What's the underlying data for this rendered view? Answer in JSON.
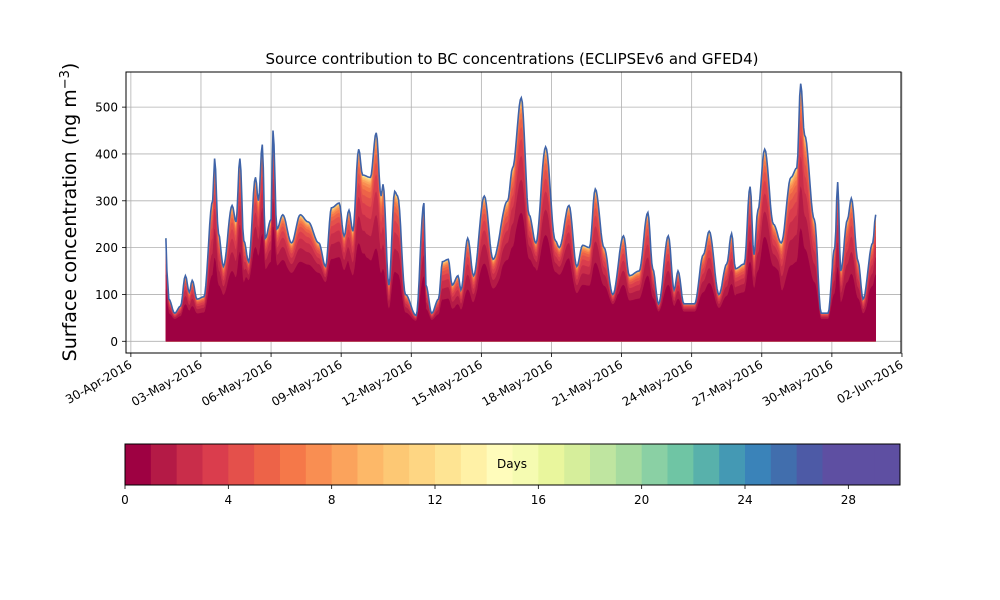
{
  "chart_data": {
    "type": "area",
    "subtype": "stacked-area-by-age",
    "title": "Source contribution to BC concentrations (ECLIPSEv6 and GFED4)",
    "ylabel_main": "Surface concentration (ng m",
    "ylabel_exp": "−3",
    "ylabel_close": ")",
    "ylim": [
      -25,
      575
    ],
    "xlim": [
      "2016-04-29T19:00",
      "2016-06-01T23:00"
    ],
    "grid": true,
    "yticks": [
      0,
      100,
      200,
      300,
      400,
      500
    ],
    "xticks": [
      {
        "date": "2016-04-30",
        "label": "30-Apr-2016"
      },
      {
        "date": "2016-05-03",
        "label": "03-May-2016"
      },
      {
        "date": "2016-05-06",
        "label": "06-May-2016"
      },
      {
        "date": "2016-05-09",
        "label": "09-May-2016"
      },
      {
        "date": "2016-05-12",
        "label": "12-May-2016"
      },
      {
        "date": "2016-05-15",
        "label": "15-May-2016"
      },
      {
        "date": "2016-05-18",
        "label": "18-May-2016"
      },
      {
        "date": "2016-05-21",
        "label": "21-May-2016"
      },
      {
        "date": "2016-05-24",
        "label": "24-May-2016"
      },
      {
        "date": "2016-05-27",
        "label": "27-May-2016"
      },
      {
        "date": "2016-05-30",
        "label": "30-May-2016"
      },
      {
        "date": "2016-06-02",
        "label": "02-Jun-2016"
      }
    ],
    "total": [
      [
        "2016-05-01T12:00",
        220
      ],
      [
        "2016-05-01T13:00",
        150
      ],
      [
        "2016-05-01T15:00",
        90
      ],
      [
        "2016-05-01T21:00",
        60
      ],
      [
        "2016-05-02T03:00",
        75
      ],
      [
        "2016-05-02T08:00",
        140
      ],
      [
        "2016-05-02T12:00",
        105
      ],
      [
        "2016-05-02T15:00",
        130
      ],
      [
        "2016-05-02T20:00",
        90
      ],
      [
        "2016-05-03T03:00",
        95
      ],
      [
        "2016-05-03T12:00",
        300
      ],
      [
        "2016-05-03T14:00",
        390
      ],
      [
        "2016-05-03T18:00",
        230
      ],
      [
        "2016-05-03T23:00",
        160
      ],
      [
        "2016-05-04T08:00",
        290
      ],
      [
        "2016-05-04T12:00",
        255
      ],
      [
        "2016-05-04T16:00",
        390
      ],
      [
        "2016-05-04T20:00",
        215
      ],
      [
        "2016-05-05T01:00",
        170
      ],
      [
        "2016-05-05T08:00",
        350
      ],
      [
        "2016-05-05T11:00",
        300
      ],
      [
        "2016-05-05T15:00",
        420
      ],
      [
        "2016-05-05T18:00",
        220
      ],
      [
        "2016-05-06T00:00",
        260
      ],
      [
        "2016-05-06T02:00",
        450
      ],
      [
        "2016-05-06T06:00",
        240
      ],
      [
        "2016-05-06T12:00",
        270
      ],
      [
        "2016-05-06T21:00",
        210
      ],
      [
        "2016-05-07T06:00",
        270
      ],
      [
        "2016-05-07T14:00",
        255
      ],
      [
        "2016-05-08T01:00",
        210
      ],
      [
        "2016-05-08T08:00",
        160
      ],
      [
        "2016-05-08T14:00",
        285
      ],
      [
        "2016-05-08T22:00",
        295
      ],
      [
        "2016-05-09T03:00",
        225
      ],
      [
        "2016-05-09T08:00",
        280
      ],
      [
        "2016-05-09T12:00",
        235
      ],
      [
        "2016-05-09T18:00",
        410
      ],
      [
        "2016-05-09T22:00",
        355
      ],
      [
        "2016-05-10T06:00",
        350
      ],
      [
        "2016-05-10T12:00",
        445
      ],
      [
        "2016-05-10T17:00",
        310
      ],
      [
        "2016-05-10T19:00",
        335
      ],
      [
        "2016-05-11T01:00",
        120
      ],
      [
        "2016-05-11T07:00",
        320
      ],
      [
        "2016-05-11T10:00",
        310
      ],
      [
        "2016-05-11T18:00",
        100
      ],
      [
        "2016-05-12T05:00",
        55
      ],
      [
        "2016-05-12T13:00",
        295
      ],
      [
        "2016-05-12T15:00",
        120
      ],
      [
        "2016-05-12T21:00",
        60
      ],
      [
        "2016-05-13T04:00",
        90
      ],
      [
        "2016-05-13T08:00",
        170
      ],
      [
        "2016-05-13T14:00",
        175
      ],
      [
        "2016-05-13T18:00",
        120
      ],
      [
        "2016-05-14T00:00",
        140
      ],
      [
        "2016-05-14T03:00",
        110
      ],
      [
        "2016-05-14T10:00",
        220
      ],
      [
        "2016-05-14T16:00",
        140
      ],
      [
        "2016-05-15T03:00",
        310
      ],
      [
        "2016-05-15T12:00",
        175
      ],
      [
        "2016-05-16T03:00",
        300
      ],
      [
        "2016-05-16T08:00",
        370
      ],
      [
        "2016-05-16T17:00",
        520
      ],
      [
        "2016-05-17T01:00",
        270
      ],
      [
        "2016-05-17T08:00",
        210
      ],
      [
        "2016-05-17T18:00",
        415
      ],
      [
        "2016-05-18T04:00",
        215
      ],
      [
        "2016-05-18T08:00",
        200
      ],
      [
        "2016-05-18T18:00",
        290
      ],
      [
        "2016-05-19T02:00",
        160
      ],
      [
        "2016-05-19T08:00",
        205
      ],
      [
        "2016-05-19T15:00",
        200
      ],
      [
        "2016-05-19T21:00",
        325
      ],
      [
        "2016-05-20T06:00",
        200
      ],
      [
        "2016-05-20T15:00",
        100
      ],
      [
        "2016-05-21T02:00",
        225
      ],
      [
        "2016-05-21T08:00",
        140
      ],
      [
        "2016-05-21T18:00",
        150
      ],
      [
        "2016-05-22T03:00",
        275
      ],
      [
        "2016-05-22T08:00",
        155
      ],
      [
        "2016-05-22T14:00",
        80
      ],
      [
        "2016-05-23T00:00",
        225
      ],
      [
        "2016-05-23T06:00",
        110
      ],
      [
        "2016-05-23T10:00",
        150
      ],
      [
        "2016-05-23T16:00",
        80
      ],
      [
        "2016-05-24T03:00",
        80
      ],
      [
        "2016-05-24T12:00",
        185
      ],
      [
        "2016-05-24T18:00",
        235
      ],
      [
        "2016-05-25T04:00",
        100
      ],
      [
        "2016-05-25T12:00",
        165
      ],
      [
        "2016-05-25T17:00",
        230
      ],
      [
        "2016-05-25T21:00",
        155
      ],
      [
        "2016-05-26T06:00",
        165
      ],
      [
        "2016-05-26T12:00",
        330
      ],
      [
        "2016-05-26T16:00",
        185
      ],
      [
        "2016-05-26T20:00",
        280
      ],
      [
        "2016-05-27T03:00",
        410
      ],
      [
        "2016-05-27T12:00",
        250
      ],
      [
        "2016-05-27T20:00",
        210
      ],
      [
        "2016-05-28T06:00",
        350
      ],
      [
        "2016-05-28T12:00",
        370
      ],
      [
        "2016-05-28T16:00",
        550
      ],
      [
        "2016-05-28T20:00",
        440
      ],
      [
        "2016-05-29T06:00",
        260
      ],
      [
        "2016-05-29T13:00",
        60
      ],
      [
        "2016-05-29T20:00",
        60
      ],
      [
        "2016-05-30T03:00",
        200
      ],
      [
        "2016-05-30T06:00",
        340
      ],
      [
        "2016-05-30T09:00",
        150
      ],
      [
        "2016-05-30T16:00",
        260
      ],
      [
        "2016-05-30T20:00",
        305
      ],
      [
        "2016-05-31T03:00",
        170
      ],
      [
        "2016-05-31T08:00",
        90
      ],
      [
        "2016-05-31T18:00",
        210
      ],
      [
        "2016-05-31T21:00",
        270
      ]
    ],
    "colorbar": {
      "label": "Days",
      "min": 0,
      "max": 30,
      "n_colors": 30,
      "ticks": [
        0,
        4,
        8,
        12,
        16,
        20,
        24,
        28
      ],
      "colors": [
        "#9e0142",
        "#b41a46",
        "#c92d4a",
        "#da3d4d",
        "#e4504b",
        "#ed6348",
        "#f57849",
        "#f98e52",
        "#fba35c",
        "#fdb868",
        "#fdc874",
        "#fed683",
        "#fee493",
        "#fff1a6",
        "#fffcbb",
        "#f5fbb1",
        "#e9f69d",
        "#d6ee9b",
        "#bfe5a0",
        "#a6db9f",
        "#8ad0a4",
        "#6fc5a4",
        "#58b1ab",
        "#4499b4",
        "#3a83b9",
        "#416ead",
        "#4d5aa6",
        "#5e4fa2",
        "#5e4fa2",
        "#5e4fa2"
      ]
    }
  }
}
